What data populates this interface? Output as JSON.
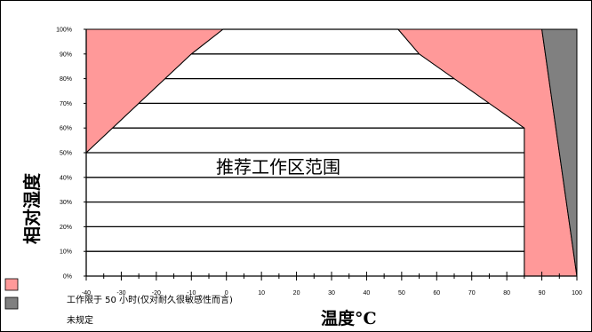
{
  "chart_data": {
    "type": "area",
    "title": "",
    "xlabel": "温度°C",
    "ylabel": "相对湿度",
    "annotation": "推荐工作区范围",
    "xlim": [
      -40,
      100
    ],
    "ylim": [
      0,
      100
    ],
    "x_ticks": [
      "-40",
      "-30",
      "-20",
      "-10",
      "0",
      "10",
      "20",
      "30",
      "40",
      "50",
      "60",
      "70",
      "80",
      "90",
      "100"
    ],
    "y_ticks": [
      "0%",
      "10%",
      "20%",
      "30%",
      "40%",
      "50%",
      "60%",
      "70%",
      "80%",
      "90%",
      "100%"
    ],
    "grid": "horizontal lines every 10% inside recommended region",
    "regions": [
      {
        "name": "recommended",
        "color": "#ffffff",
        "points": [
          [
            -40,
            50
          ],
          [
            -25,
            70
          ],
          [
            -10,
            90
          ],
          [
            -1,
            100
          ],
          [
            49,
            100
          ],
          [
            55,
            90
          ],
          [
            65,
            80
          ],
          [
            75,
            70
          ],
          [
            85,
            60
          ],
          [
            85,
            0
          ],
          [
            -40,
            0
          ]
        ]
      },
      {
        "name": "limit-left",
        "color": "#ff9999",
        "points": [
          [
            -40,
            50
          ],
          [
            -25,
            70
          ],
          [
            -10,
            90
          ],
          [
            -1,
            100
          ],
          [
            -40,
            100
          ]
        ]
      },
      {
        "name": "limit-right",
        "color": "#ff9999",
        "points": [
          [
            49,
            100
          ],
          [
            55,
            90
          ],
          [
            65,
            80
          ],
          [
            75,
            70
          ],
          [
            85,
            60
          ],
          [
            85,
            0
          ],
          [
            100,
            0
          ],
          [
            90,
            100
          ]
        ]
      },
      {
        "name": "unspecified",
        "color": "#808080",
        "points": [
          [
            90,
            100
          ],
          [
            100,
            100
          ],
          [
            100,
            0
          ]
        ]
      }
    ],
    "legend": [
      {
        "label": "工作限于   50 小时(仅对耐久很敏感性而言)",
        "color": "#ff9999"
      },
      {
        "label": "未规定",
        "color": "#808080"
      }
    ],
    "legend_position": "bottom-left"
  }
}
